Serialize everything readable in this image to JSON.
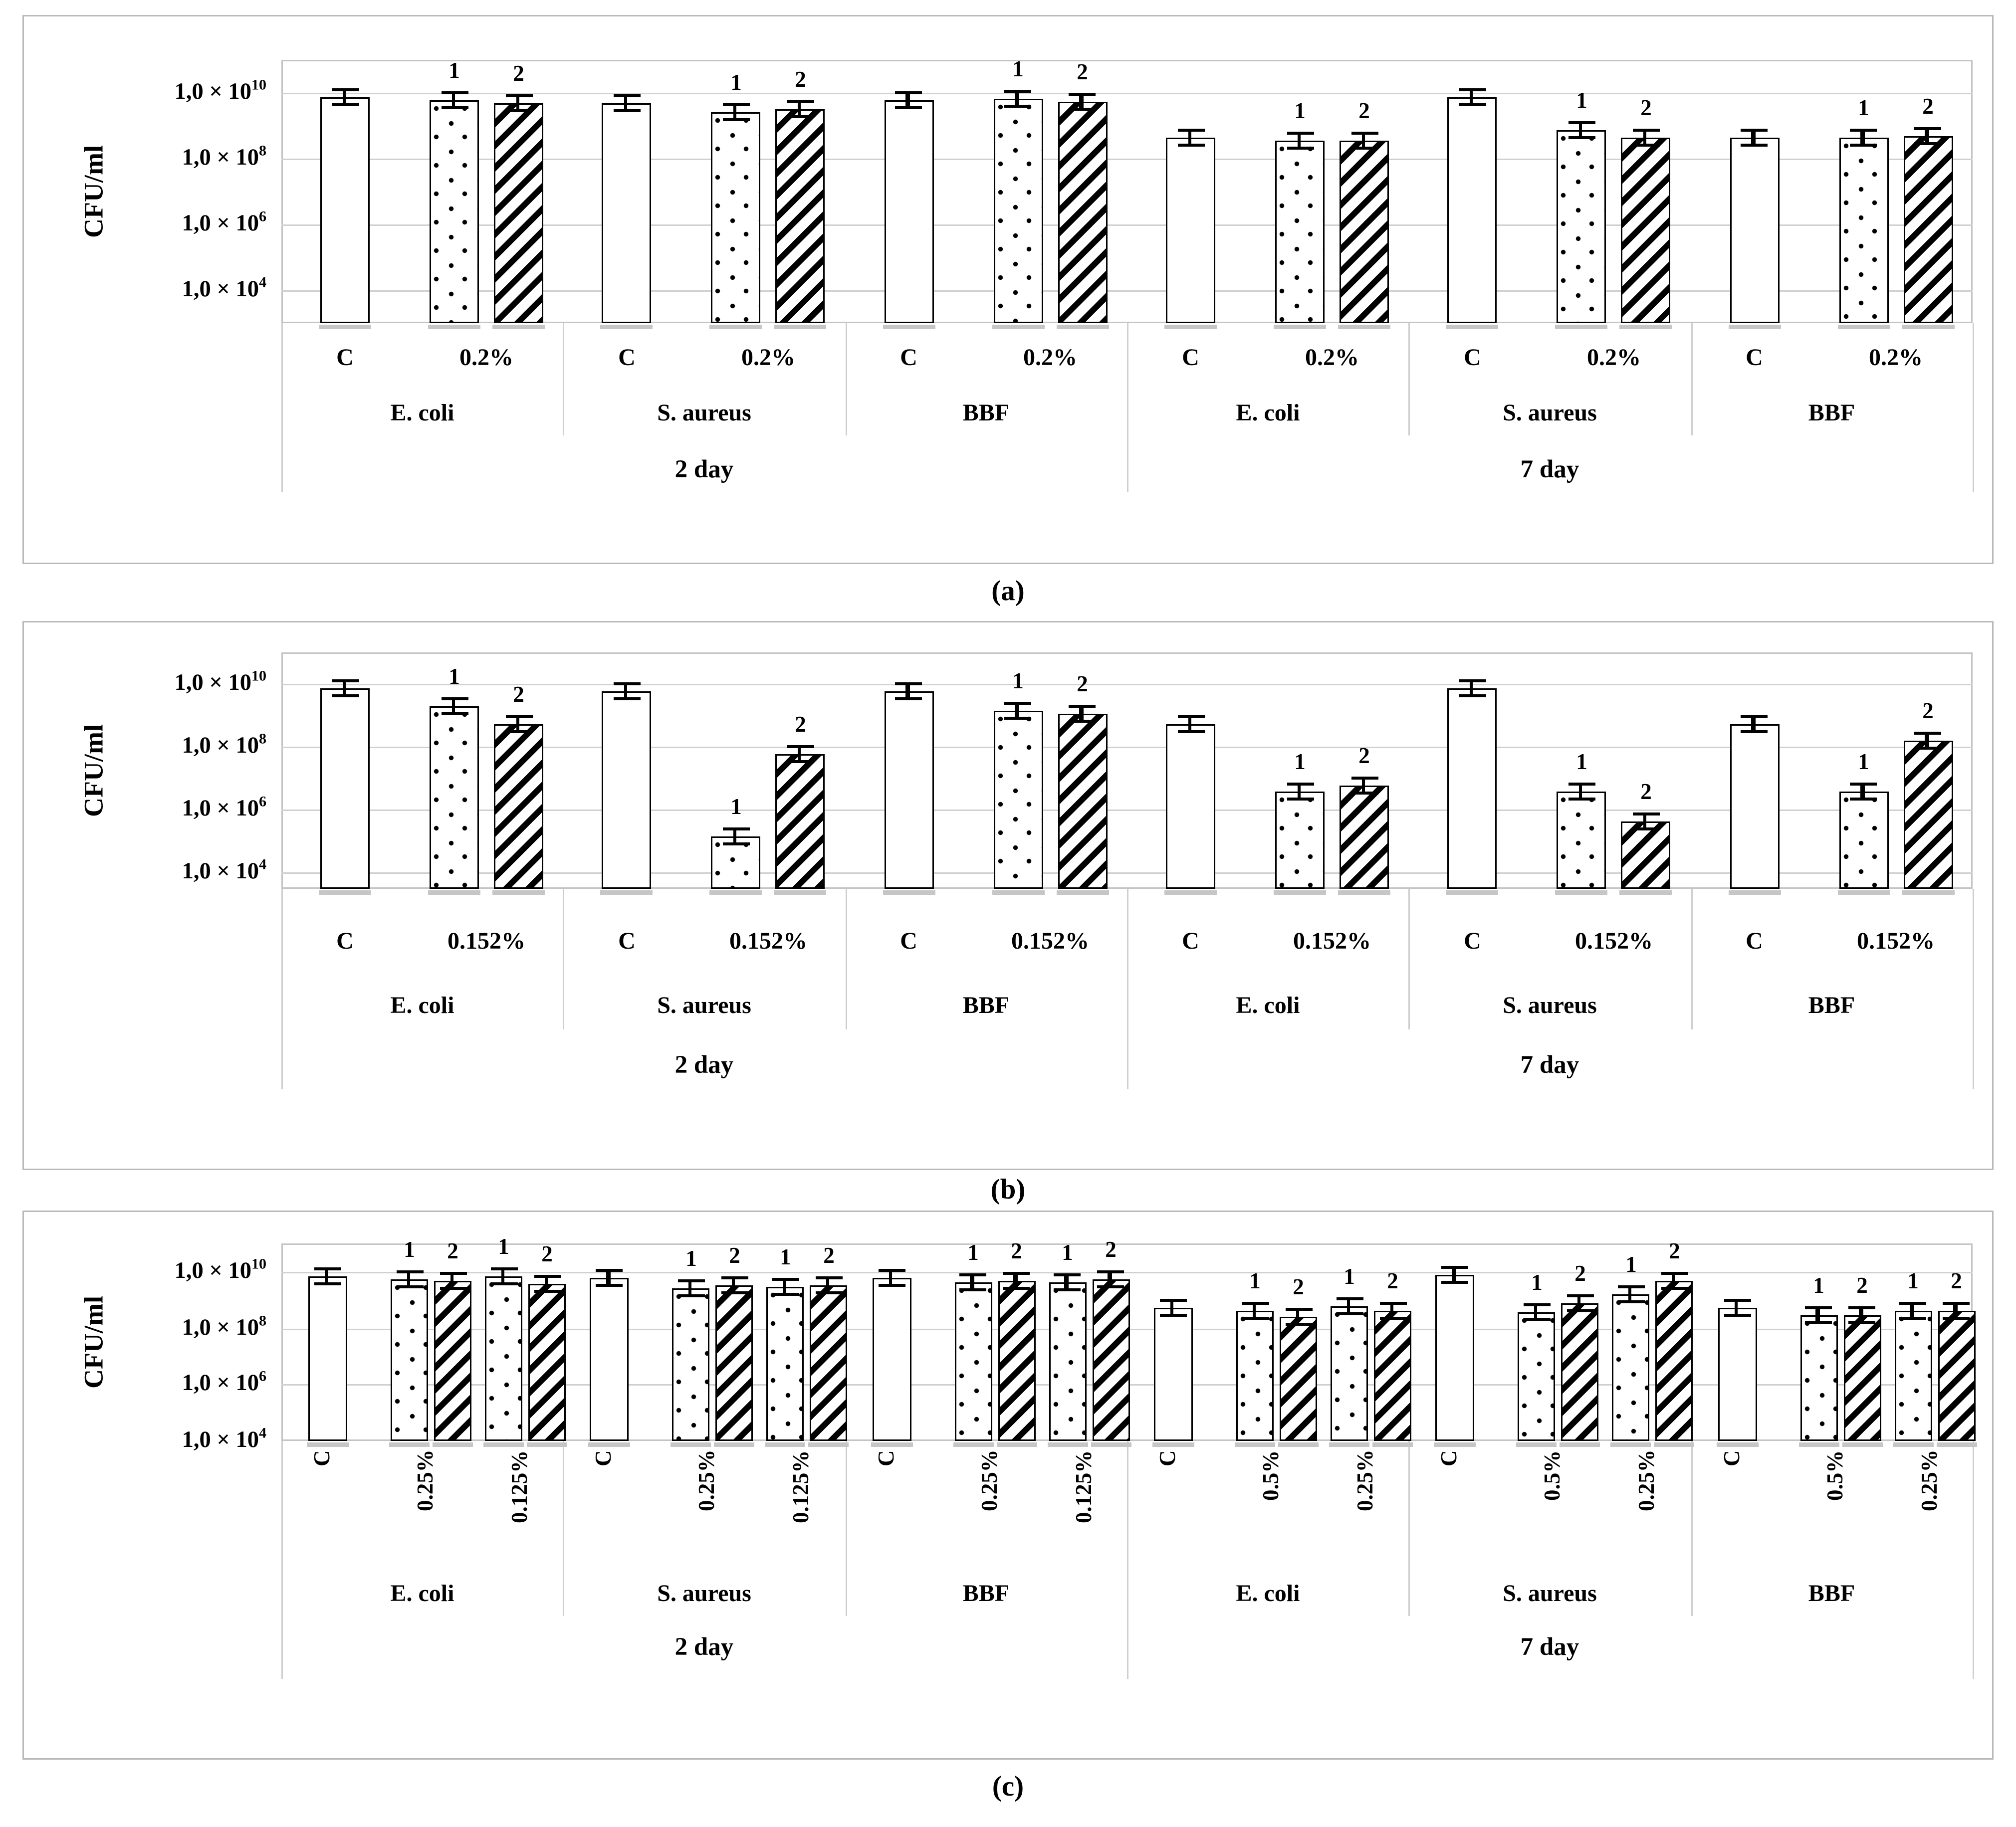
{
  "figure": {
    "y_axis_title": "CFU/ml",
    "control_label": "C",
    "bar_series_labels": [
      "1",
      "2"
    ],
    "day_labels": [
      "2 day",
      "7 day"
    ],
    "species_labels": [
      "E. coli",
      "S. aureus",
      "BBF"
    ],
    "panel_captions": [
      "(a)",
      "(b)",
      "(c)"
    ],
    "colors": {
      "bar_fill": "#ffffff",
      "bar_border": "#000000",
      "gridline": "#d0d0d0",
      "panel_border": "#b9b9b9"
    }
  },
  "chart_data": [
    {
      "type": "bar",
      "panel": "a",
      "caption": "(a)",
      "ylabel": "CFU/ml",
      "yscale": "log",
      "ylim": [
        1000.0,
        100000000000.0
      ],
      "grid": true,
      "yticks": [
        {
          "mantissa": "1,0 × 10",
          "exponent": "10",
          "value": 10000000000.0
        },
        {
          "mantissa": "1,0 × 10",
          "exponent": "8",
          "value": 100000000.0
        },
        {
          "mantissa": "1,0 × 10",
          "exponent": "6",
          "value": 1000000.0
        },
        {
          "mantissa": "1,0 × 10",
          "exponent": "4",
          "value": 10000.0
        }
      ],
      "days": [
        {
          "label": "2 day",
          "groups": [
            {
              "species": "E. coli",
              "clusters": [
                {
                  "treatment": "C",
                  "bars": [
                    {
                      "series": "C",
                      "value": 7000000000.0
                    }
                  ]
                },
                {
                  "treatment": "0.2%",
                  "bars": [
                    {
                      "series": "1",
                      "value": 6000000000.0
                    },
                    {
                      "series": "2",
                      "value": 5000000000.0
                    }
                  ]
                }
              ]
            },
            {
              "species": "S. aureus",
              "clusters": [
                {
                  "treatment": "C",
                  "bars": [
                    {
                      "series": "C",
                      "value": 5000000000.0
                    }
                  ]
                },
                {
                  "treatment": "0.2%",
                  "bars": [
                    {
                      "series": "1",
                      "value": 2500000000.0
                    },
                    {
                      "series": "2",
                      "value": 3200000000.0
                    }
                  ]
                }
              ]
            },
            {
              "species": "BBF",
              "clusters": [
                {
                  "treatment": "C",
                  "bars": [
                    {
                      "series": "C",
                      "value": 6000000000.0
                    }
                  ]
                },
                {
                  "treatment": "0.2%",
                  "bars": [
                    {
                      "series": "1",
                      "value": 6500000000.0
                    },
                    {
                      "series": "2",
                      "value": 5500000000.0
                    }
                  ]
                }
              ]
            }
          ]
        },
        {
          "label": "7 day",
          "groups": [
            {
              "species": "E. coli",
              "clusters": [
                {
                  "treatment": "C",
                  "bars": [
                    {
                      "series": "C",
                      "value": 450000000.0
                    }
                  ]
                },
                {
                  "treatment": "0.2%",
                  "bars": [
                    {
                      "series": "1",
                      "value": 350000000.0
                    },
                    {
                      "series": "2",
                      "value": 350000000.0
                    }
                  ]
                }
              ]
            },
            {
              "species": "S. aureus",
              "clusters": [
                {
                  "treatment": "C",
                  "bars": [
                    {
                      "series": "C",
                      "value": 7500000000.0
                    }
                  ]
                },
                {
                  "treatment": "0.2%",
                  "bars": [
                    {
                      "series": "1",
                      "value": 700000000.0
                    },
                    {
                      "series": "2",
                      "value": 450000000.0
                    }
                  ]
                }
              ]
            },
            {
              "species": "BBF",
              "clusters": [
                {
                  "treatment": "C",
                  "bars": [
                    {
                      "series": "C",
                      "value": 450000000.0
                    }
                  ]
                },
                {
                  "treatment": "0.2%",
                  "bars": [
                    {
                      "series": "1",
                      "value": 450000000.0
                    },
                    {
                      "series": "2",
                      "value": 500000000.0
                    }
                  ]
                }
              ]
            }
          ]
        }
      ]
    },
    {
      "type": "bar",
      "panel": "b",
      "caption": "(b)",
      "ylabel": "CFU/ml",
      "yscale": "log",
      "ylim": [
        3000.0,
        100000000000.0
      ],
      "grid": true,
      "yticks": [
        {
          "mantissa": "1,0 × 10",
          "exponent": "10",
          "value": 10000000000.0
        },
        {
          "mantissa": "1,0 × 10",
          "exponent": "8",
          "value": 100000000.0
        },
        {
          "mantissa": "1,0 × 10",
          "exponent": "6",
          "value": 1000000.0
        },
        {
          "mantissa": "1,0 × 10",
          "exponent": "4",
          "value": 10000.0
        }
      ],
      "days": [
        {
          "label": "2 day",
          "groups": [
            {
              "species": "E. coli",
              "clusters": [
                {
                  "treatment": "C",
                  "bars": [
                    {
                      "series": "C",
                      "value": 7000000000.0
                    }
                  ]
                },
                {
                  "treatment": "0.152%",
                  "bars": [
                    {
                      "series": "1",
                      "value": 2000000000.0
                    },
                    {
                      "series": "2",
                      "value": 500000000.0
                    }
                  ]
                }
              ]
            },
            {
              "species": "S. aureus",
              "clusters": [
                {
                  "treatment": "C",
                  "bars": [
                    {
                      "series": "C",
                      "value": 6000000000.0
                    }
                  ]
                },
                {
                  "treatment": "0.152%",
                  "bars": [
                    {
                      "series": "1",
                      "value": 150000.0
                    },
                    {
                      "series": "2",
                      "value": 60000000.0
                    }
                  ]
                }
              ]
            },
            {
              "species": "BBF",
              "clusters": [
                {
                  "treatment": "C",
                  "bars": [
                    {
                      "series": "C",
                      "value": 6000000000.0
                    }
                  ]
                },
                {
                  "treatment": "0.152%",
                  "bars": [
                    {
                      "series": "1",
                      "value": 1400000000.0
                    },
                    {
                      "series": "2",
                      "value": 1100000000.0
                    }
                  ]
                }
              ]
            }
          ]
        },
        {
          "label": "7 day",
          "groups": [
            {
              "species": "E. coli",
              "clusters": [
                {
                  "treatment": "C",
                  "bars": [
                    {
                      "series": "C",
                      "value": 500000000.0
                    }
                  ]
                },
                {
                  "treatment": "0.152%",
                  "bars": [
                    {
                      "series": "1",
                      "value": 4000000.0
                    },
                    {
                      "series": "2",
                      "value": 6000000.0
                    }
                  ]
                }
              ]
            },
            {
              "species": "S. aureus",
              "clusters": [
                {
                  "treatment": "C",
                  "bars": [
                    {
                      "series": "C",
                      "value": 7000000000.0
                    }
                  ]
                },
                {
                  "treatment": "0.152%",
                  "bars": [
                    {
                      "series": "1",
                      "value": 4000000.0
                    },
                    {
                      "series": "2",
                      "value": 450000.0
                    }
                  ]
                }
              ]
            },
            {
              "species": "BBF",
              "clusters": [
                {
                  "treatment": "C",
                  "bars": [
                    {
                      "series": "C",
                      "value": 500000000.0
                    }
                  ]
                },
                {
                  "treatment": "0.152%",
                  "bars": [
                    {
                      "series": "1",
                      "value": 4000000.0
                    },
                    {
                      "series": "2",
                      "value": 160000000.0
                    }
                  ]
                }
              ]
            }
          ]
        }
      ]
    },
    {
      "type": "bar",
      "panel": "c",
      "caption": "(c)",
      "ylabel": "CFU/ml",
      "yscale": "log",
      "ylim": [
        10000.0,
        100000000000.0
      ],
      "grid": true,
      "rotated_tier_labels": true,
      "yticks": [
        {
          "mantissa": "1,0 × 10",
          "exponent": "10",
          "value": 10000000000.0
        },
        {
          "mantissa": "1,0 × 10",
          "exponent": "8",
          "value": 100000000.0
        },
        {
          "mantissa": "1,0 × 10",
          "exponent": "6",
          "value": 1000000.0
        },
        {
          "mantissa": "1,0 × 10",
          "exponent": "4",
          "value": 10000.0
        }
      ],
      "days": [
        {
          "label": "2 day",
          "groups": [
            {
              "species": "E. coli",
              "clusters": [
                {
                  "treatment": "C",
                  "bars": [
                    {
                      "series": "C",
                      "value": 7000000000.0
                    }
                  ]
                },
                {
                  "treatment": "0.25%",
                  "bars": [
                    {
                      "series": "1",
                      "value": 5400000000.0
                    },
                    {
                      "series": "2",
                      "value": 5000000000.0
                    }
                  ]
                },
                {
                  "treatment": "0.125%",
                  "bars": [
                    {
                      "series": "1",
                      "value": 6600000000.0
                    },
                    {
                      "series": "2",
                      "value": 3700000000.0
                    }
                  ]
                }
              ]
            },
            {
              "species": "S. aureus",
              "clusters": [
                {
                  "treatment": "C",
                  "bars": [
                    {
                      "series": "C",
                      "value": 6000000000.0
                    }
                  ]
                },
                {
                  "treatment": "0.25%",
                  "bars": [
                    {
                      "series": "1",
                      "value": 2700000000.0
                    },
                    {
                      "series": "2",
                      "value": 3300000000.0
                    }
                  ]
                },
                {
                  "treatment": "0.125%",
                  "bars": [
                    {
                      "series": "1",
                      "value": 2900000000.0
                    },
                    {
                      "series": "2",
                      "value": 3300000000.0
                    }
                  ]
                }
              ]
            },
            {
              "species": "BBF",
              "clusters": [
                {
                  "treatment": "C",
                  "bars": [
                    {
                      "series": "C",
                      "value": 6000000000.0
                    }
                  ]
                },
                {
                  "treatment": "0.25%",
                  "bars": [
                    {
                      "series": "1",
                      "value": 4400000000.0
                    },
                    {
                      "series": "2",
                      "value": 4600000000.0
                    }
                  ]
                },
                {
                  "treatment": "0.125%",
                  "bars": [
                    {
                      "series": "1",
                      "value": 4400000000.0
                    },
                    {
                      "series": "2",
                      "value": 5400000000.0
                    }
                  ]
                }
              ]
            }
          ]
        },
        {
          "label": "7 day",
          "groups": [
            {
              "species": "E. coli",
              "clusters": [
                {
                  "treatment": "C",
                  "bars": [
                    {
                      "series": "C",
                      "value": 500000000.0
                    }
                  ]
                },
                {
                  "treatment": "0.5%",
                  "bars": [
                    {
                      "series": "1",
                      "value": 390000000.0
                    },
                    {
                      "series": "2",
                      "value": 250000000.0
                    }
                  ]
                },
                {
                  "treatment": "0.25%",
                  "bars": [
                    {
                      "series": "1",
                      "value": 560000000.0
                    },
                    {
                      "series": "2",
                      "value": 390000000.0
                    }
                  ]
                }
              ]
            },
            {
              "species": "S. aureus",
              "clusters": [
                {
                  "treatment": "C",
                  "bars": [
                    {
                      "series": "C",
                      "value": 8000000000.0
                    }
                  ]
                },
                {
                  "treatment": "0.5%",
                  "bars": [
                    {
                      "series": "1",
                      "value": 370000000.0
                    },
                    {
                      "series": "2",
                      "value": 780000000.0
                    }
                  ]
                },
                {
                  "treatment": "0.25%",
                  "bars": [
                    {
                      "series": "1",
                      "value": 1600000000.0
                    },
                    {
                      "series": "2",
                      "value": 4600000000.0
                    }
                  ]
                }
              ]
            },
            {
              "species": "BBF",
              "clusters": [
                {
                  "treatment": "C",
                  "bars": [
                    {
                      "series": "C",
                      "value": 500000000.0
                    }
                  ]
                },
                {
                  "treatment": "0.5%",
                  "bars": [
                    {
                      "series": "1",
                      "value": 280000000.0
                    },
                    {
                      "series": "2",
                      "value": 300000000.0
                    }
                  ]
                },
                {
                  "treatment": "0.25%",
                  "bars": [
                    {
                      "series": "1",
                      "value": 430000000.0
                    },
                    {
                      "series": "2",
                      "value": 430000000.0
                    }
                  ]
                }
              ]
            }
          ]
        }
      ]
    }
  ]
}
